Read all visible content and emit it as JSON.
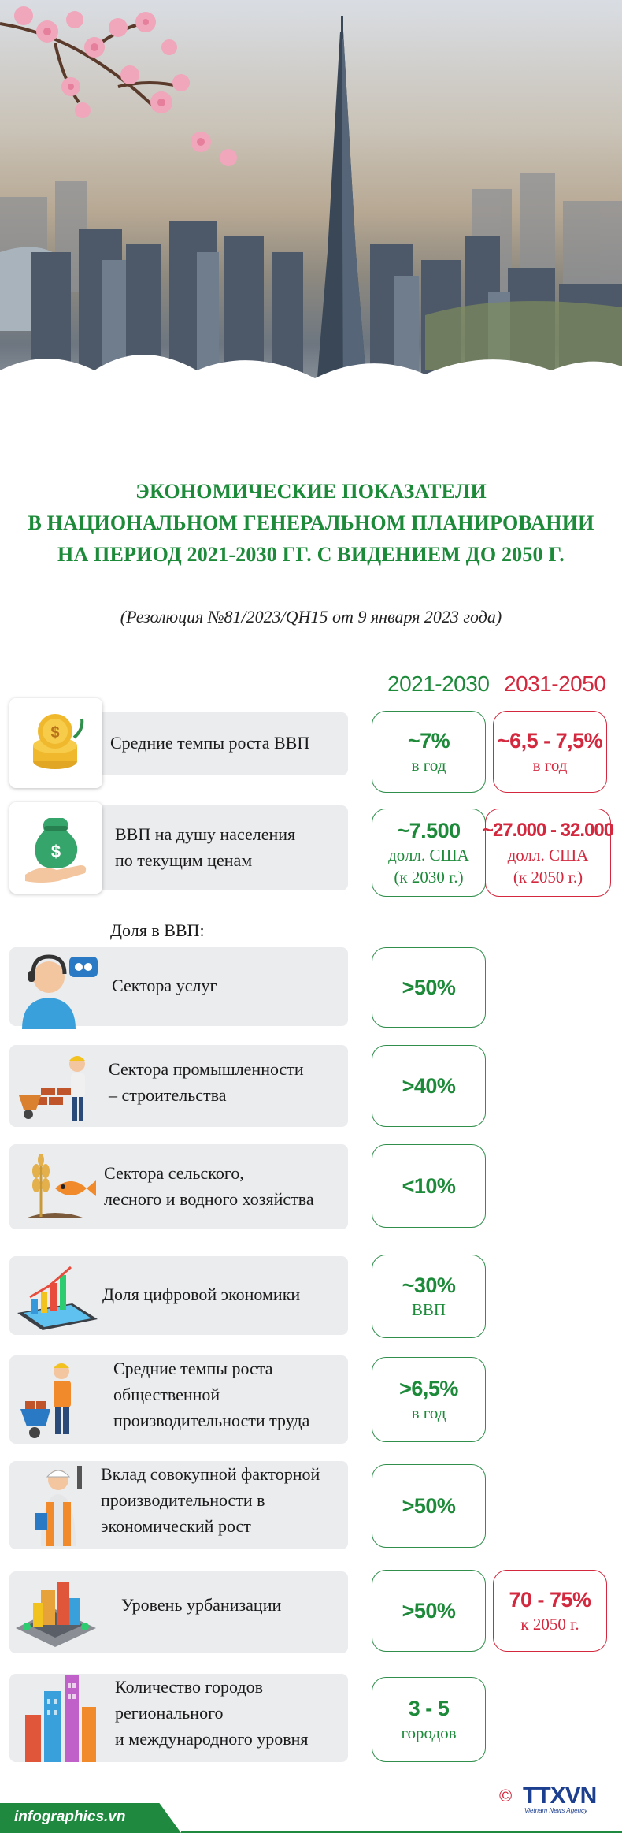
{
  "header": {
    "title_lines": [
      "ЭКОНОМИЧЕСКИЕ ПОКАЗАТЕЛИ",
      "В НАЦИОНАЛЬНОМ ГЕНЕРАЛЬНОМ ПЛАНИРОВАНИИ",
      "НА ПЕРИОД 2021-2030 ГГ. С ВИДЕНИЕМ ДО 2050 Г."
    ],
    "subtitle": "(Резолюция №81/2023/QH15 от 9 января 2023 года)"
  },
  "columns": {
    "period1": "2021-2030",
    "period2": "2031-2050"
  },
  "share_label": "Доля в ВВП:",
  "rows": [
    {
      "icon": "coins-growth-icon",
      "label_lines": [
        "Средние темпы роста ВВП"
      ],
      "v1": {
        "big": "~7%",
        "small": [
          "в год"
        ]
      },
      "v2": {
        "big": "~6,5 - 7,5%",
        "small": [
          "в год"
        ]
      }
    },
    {
      "icon": "money-bag-hand-icon",
      "label_lines": [
        "ВВП на душу населения",
        "по текущим ценам"
      ],
      "v1": {
        "big": "~7.500",
        "small": [
          "долл. США",
          "(к 2030 г.)"
        ]
      },
      "v2": {
        "big": "~27.000 - 32.000",
        "small": [
          "долл. США",
          "(к 2050 г.)"
        ]
      }
    },
    {
      "icon": "service-agent-icon",
      "label_lines": [
        "Сектора услуг"
      ],
      "v1": {
        "big": ">50%",
        "small": []
      }
    },
    {
      "icon": "construction-worker-icon",
      "label_lines": [
        "Сектора промышленности",
        "– строительства"
      ],
      "v1": {
        "big": ">40%",
        "small": []
      }
    },
    {
      "icon": "wheat-fish-icon",
      "label_lines": [
        "Сектора сельского,",
        "лесного и водного хозяйства"
      ],
      "v1": {
        "big": "<10%",
        "small": []
      }
    },
    {
      "icon": "tablet-chart-icon",
      "label_lines": [
        "Доля цифровой экономики"
      ],
      "v1": {
        "big": "~30%",
        "small": [
          "ВВП"
        ]
      }
    },
    {
      "icon": "worker-wheelbarrow-icon",
      "label_lines": [
        "Средние темпы роста",
        "общественной",
        "производительности труда"
      ],
      "v1": {
        "big": ">6,5%",
        "small": [
          "в год"
        ]
      }
    },
    {
      "icon": "engineer-icon",
      "label_lines": [
        "Вклад совокупной факторной",
        "производительности в",
        "экономический рост"
      ],
      "v1": {
        "big": ">50%",
        "small": []
      }
    },
    {
      "icon": "city-block-icon",
      "label_lines": [
        "Уровень урбанизации"
      ],
      "v1": {
        "big": ">50%",
        "small": []
      },
      "v2": {
        "big": "70 - 75%",
        "small": [
          "к 2050 г."
        ]
      }
    },
    {
      "icon": "skyscrapers-icon",
      "label_lines": [
        "Количество городов",
        "регионального",
        "и международного уровня"
      ],
      "v1": {
        "big": "3 - 5",
        "small": [
          "городов"
        ]
      }
    }
  ],
  "footer": {
    "site": "infographics.vn",
    "copyright": "©",
    "agency": "TTXVN",
    "agency_sub": "Vietnam News Agency"
  },
  "colors": {
    "green": "#1d8a3a",
    "red": "#d3283e",
    "bar": "#ebecee",
    "brand": "#1d3f8f"
  }
}
